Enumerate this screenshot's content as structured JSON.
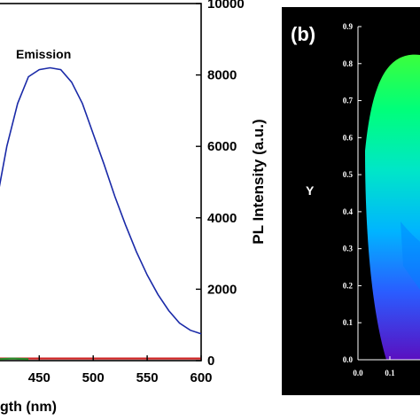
{
  "chart_data": [
    {
      "type": "line",
      "xlabel": "gth (nm)",
      "ylabel_right": "PL Intensity (a.u.)",
      "xlim": [
        412,
        600
      ],
      "ylim_right": [
        0,
        10000
      ],
      "x_ticks": [
        "450",
        "500",
        "550",
        "600"
      ],
      "y_ticks_right": [
        "0",
        "2000",
        "4000",
        "6000",
        "8000",
        "10000"
      ],
      "annotations": [
        "Emission"
      ],
      "series": [
        {
          "name": "",
          "color": "#1a2aa8",
          "points": [
            [
              412,
              4700
            ],
            [
              420,
              6000
            ],
            [
              430,
              7200
            ],
            [
              440,
              7950
            ],
            [
              450,
              8150
            ],
            [
              460,
              8200
            ],
            [
              470,
              8150
            ],
            [
              480,
              7800
            ],
            [
              490,
              7200
            ],
            [
              500,
              6350
            ],
            [
              510,
              5500
            ],
            [
              520,
              4600
            ],
            [
              530,
              3800
            ],
            [
              540,
              3050
            ],
            [
              550,
              2400
            ],
            [
              560,
              1850
            ],
            [
              570,
              1400
            ],
            [
              580,
              1050
            ],
            [
              590,
              850
            ],
            [
              600,
              750
            ]
          ]
        },
        {
          "name": "",
          "color": "#cc2020",
          "points": [
            [
              412,
              60
            ],
            [
              600,
              60
            ]
          ]
        },
        {
          "name": "",
          "color": "#2a8a2a",
          "points": [
            [
              412,
              40
            ],
            [
              425,
              60
            ],
            [
              440,
              40
            ]
          ]
        }
      ]
    },
    {
      "type": "scatter",
      "panel_label": "(b)",
      "xlabel": "",
      "ylabel": "Y",
      "xlim": [
        0.0,
        0.8
      ],
      "ylim": [
        0.0,
        0.9
      ],
      "x_ticks": [
        "0.0",
        "0.1"
      ],
      "y_ticks": [
        "0.0",
        "0.1",
        "0.2",
        "0.3",
        "0.4",
        "0.5",
        "0.6",
        "0.7",
        "0.8",
        "0.9"
      ],
      "background": "#000000",
      "series": []
    }
  ]
}
